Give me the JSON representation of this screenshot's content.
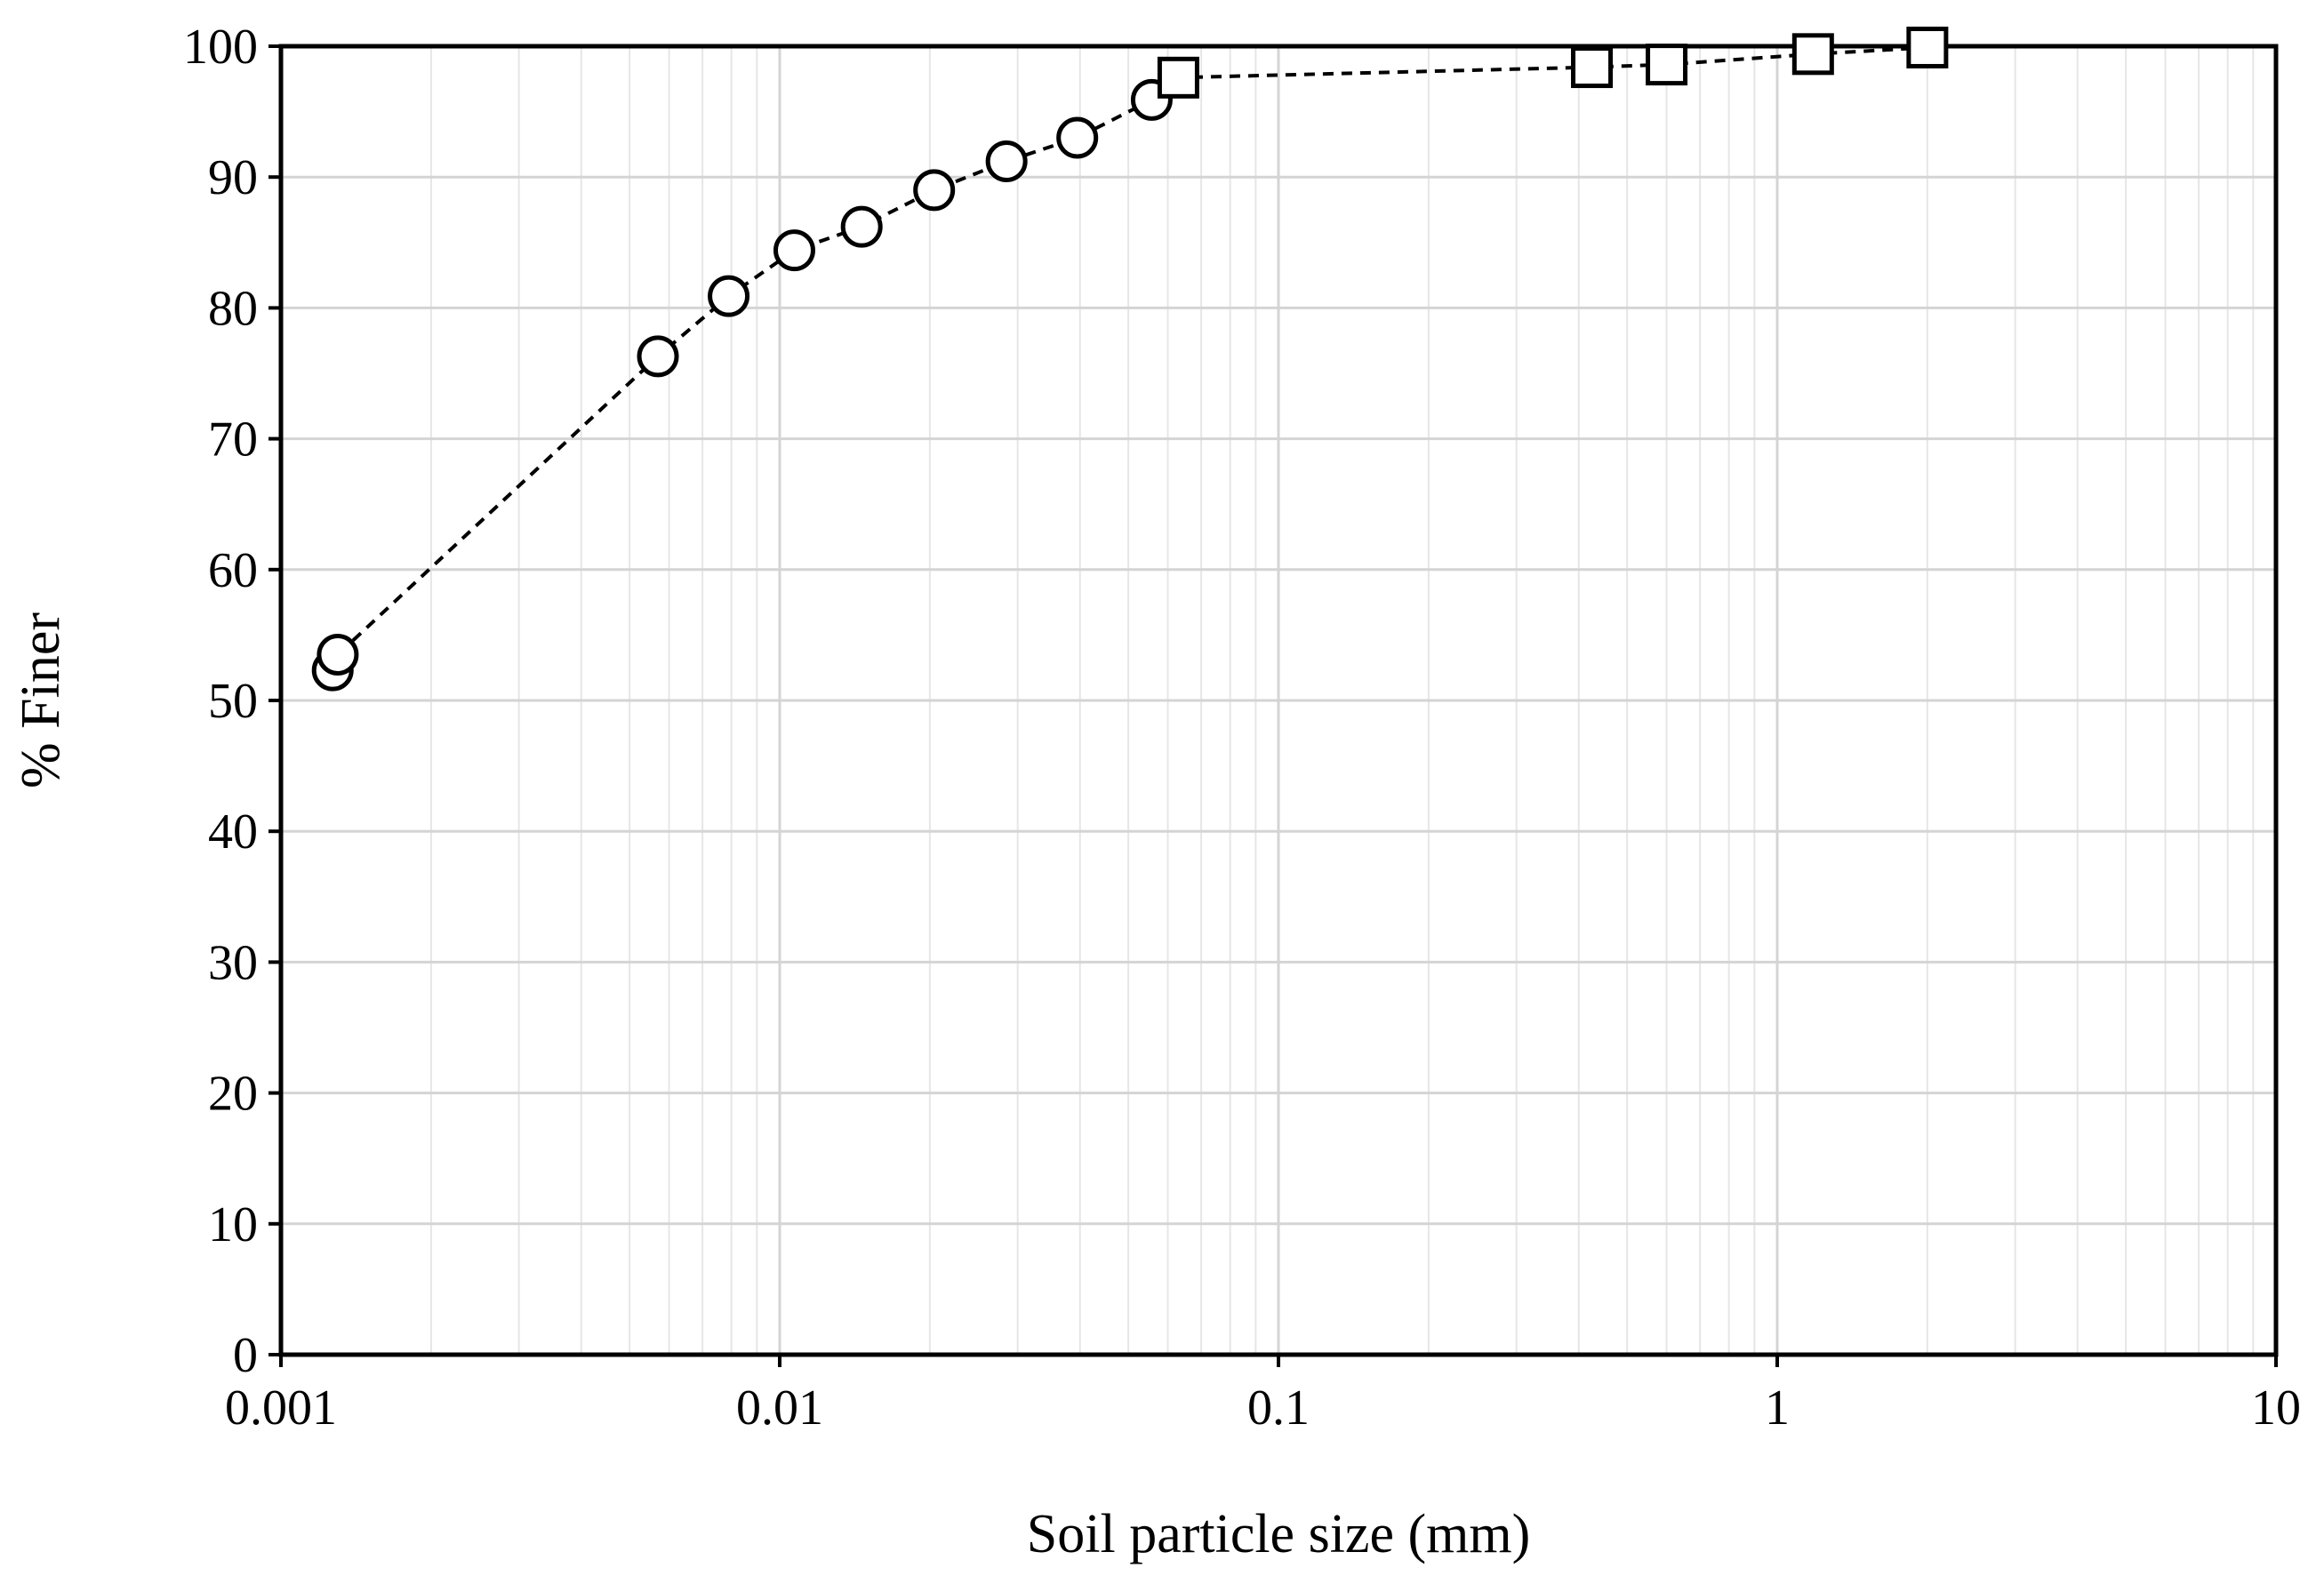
{
  "chart_data": {
    "type": "scatter",
    "xlabel": "Soil particle size (mm)",
    "ylabel": "% Finer",
    "xscale": "log",
    "xlim": [
      0.001,
      10
    ],
    "ylim": [
      0,
      100
    ],
    "grid": true,
    "x_ticks": [
      "0.001",
      "0.01",
      "0.1",
      "1",
      "10"
    ],
    "y_ticks": [
      "0",
      "10",
      "20",
      "30",
      "40",
      "50",
      "60",
      "70",
      "80",
      "90",
      "100"
    ],
    "line_style": "dashed",
    "series": [
      {
        "marker": "circle",
        "x": [
          0.00127,
          0.0013,
          0.0057,
          0.0079,
          0.0107,
          0.0146,
          0.0204,
          0.0285,
          0.0395,
          0.0557
        ],
        "y": [
          52.3,
          53.5,
          76.3,
          80.9,
          84.4,
          86.2,
          89.0,
          91.2,
          93.0,
          95.9
        ]
      },
      {
        "marker": "square",
        "x": [
          0.063,
          0.425,
          0.6,
          1.18,
          2.0
        ],
        "y": [
          97.6,
          98.4,
          98.6,
          99.4,
          99.9
        ]
      }
    ]
  }
}
